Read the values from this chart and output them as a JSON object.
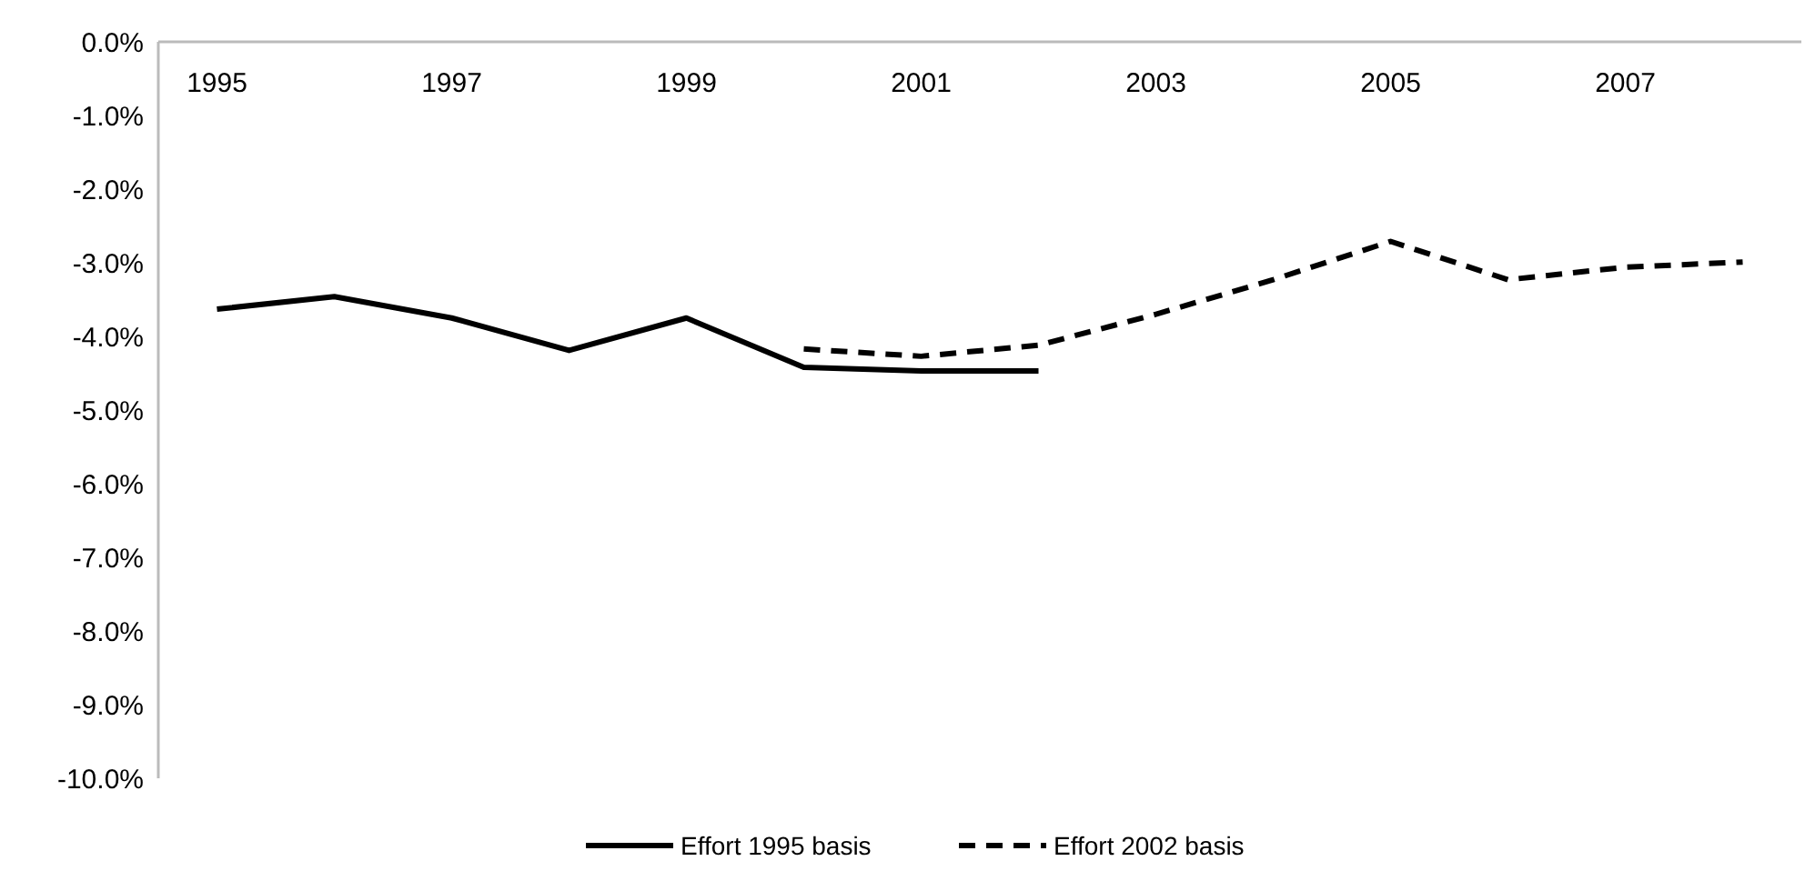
{
  "chart_data": {
    "type": "line",
    "categories": [
      "1995",
      null,
      "1997",
      null,
      "1999",
      null,
      "2001",
      null,
      "2003",
      null,
      "2005",
      null,
      "2007",
      null
    ],
    "series": [
      {
        "name": "Effort 1995 basis",
        "color": "#000000",
        "line_style": "solid",
        "values": [
          -3.63,
          -3.46,
          -3.75,
          -4.19,
          -3.75,
          -4.42,
          -4.47,
          -4.47,
          null,
          null,
          null,
          null,
          null,
          null
        ]
      },
      {
        "name": "Effort 2002 basis",
        "color": "#000000",
        "line_style": "dashed",
        "values": [
          null,
          null,
          null,
          null,
          null,
          -4.17,
          -4.27,
          -4.12,
          -3.7,
          -3.23,
          -2.71,
          -3.23,
          -3.06,
          -2.99
        ]
      }
    ],
    "ylim": [
      -10,
      0
    ],
    "yticks": [
      {
        "value": 0,
        "label": "0.0%"
      },
      {
        "value": -1,
        "label": "-1.0%"
      },
      {
        "value": -2,
        "label": "-2.0%"
      },
      {
        "value": -3,
        "label": "-3.0%"
      },
      {
        "value": -4,
        "label": "-4.0%"
      },
      {
        "value": -5,
        "label": "-5.0%"
      },
      {
        "value": -6,
        "label": "-6.0%"
      },
      {
        "value": -7,
        "label": "-7.0%"
      },
      {
        "value": -8,
        "label": "-8.0%"
      },
      {
        "value": -9,
        "label": "-9.0%"
      },
      {
        "value": -10,
        "label": "-10.0%"
      }
    ],
    "grid": false,
    "legend": "bottom",
    "marker": "none"
  }
}
